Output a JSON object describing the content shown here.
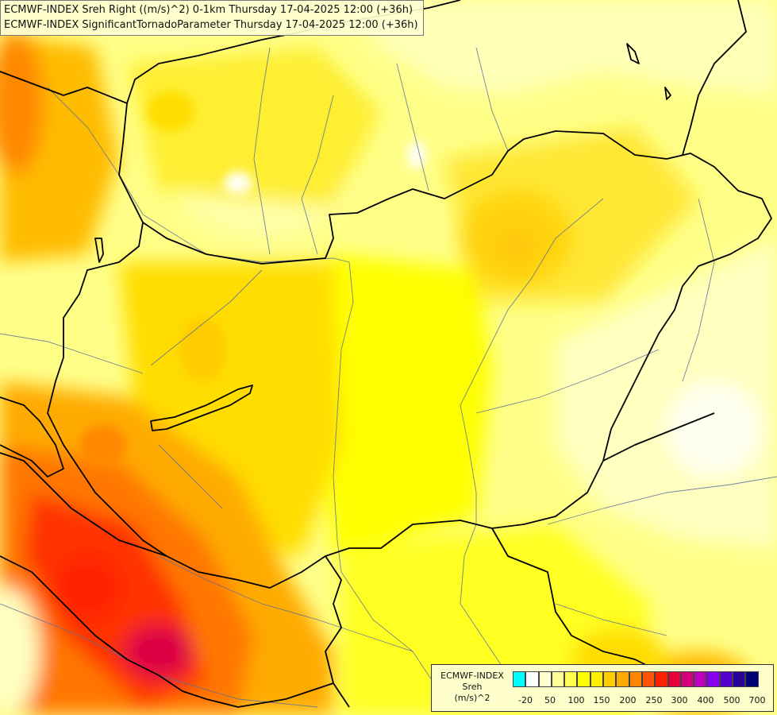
{
  "map": {
    "title_line1": "ECMWF-INDEX Sreh Right ((m/s)^2) 0-1km Thursday 17-04-2025 12:00 (+36h)",
    "title_line2": "ECMWF-INDEX SignificantTornadoParameter Thursday 17-04-2025 12:00 (+36h)",
    "field_colors": {
      "lightest": "#ffffd0",
      "pale": "#ffff99",
      "yellow": "#ffff00",
      "gold": "#ffdd00",
      "orange_light": "#ffbb00",
      "orange": "#ff9900",
      "orange_dark": "#ff6600",
      "red": "#ff2200",
      "crimson": "#dd0044"
    }
  },
  "legend": {
    "title_line1": "ECMWF-INDEX",
    "title_line2": "Sreh",
    "title_line3": "(m/s)^2",
    "swatch_colors": [
      "#00ffff",
      "#ffffff",
      "#ffffd0",
      "#ffff99",
      "#ffff50",
      "#ffff00",
      "#ffee00",
      "#ffcc00",
      "#ffaa00",
      "#ff8800",
      "#ff5500",
      "#ff2200",
      "#e8003a",
      "#d40078",
      "#bb00bb",
      "#8800ee",
      "#5500cc",
      "#2a0099",
      "#000077"
    ],
    "tick_labels": [
      "-20",
      "50",
      "100",
      "150",
      "200",
      "250",
      "300",
      "400",
      "500",
      "700"
    ]
  }
}
